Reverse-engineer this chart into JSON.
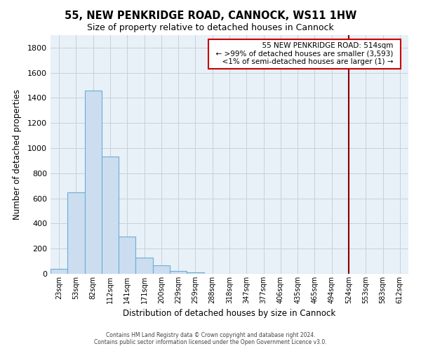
{
  "title": "55, NEW PENKRIDGE ROAD, CANNOCK, WS11 1HW",
  "subtitle": "Size of property relative to detached houses in Cannock",
  "xlabel": "Distribution of detached houses by size in Cannock",
  "ylabel": "Number of detached properties",
  "bar_labels": [
    "23sqm",
    "53sqm",
    "82sqm",
    "112sqm",
    "141sqm",
    "171sqm",
    "200sqm",
    "229sqm",
    "259sqm",
    "288sqm",
    "318sqm",
    "347sqm",
    "377sqm",
    "406sqm",
    "435sqm",
    "465sqm",
    "494sqm",
    "524sqm",
    "553sqm",
    "583sqm",
    "612sqm"
  ],
  "bar_values": [
    40,
    650,
    1460,
    935,
    295,
    130,
    65,
    22,
    10,
    0,
    0,
    0,
    0,
    0,
    0,
    0,
    0,
    0,
    0,
    0,
    0
  ],
  "bar_color": "#ccddf0",
  "bar_edge_color": "#6baed6",
  "plot_bg_color": "#e8f0f8",
  "ylim": [
    0,
    1900
  ],
  "yticks": [
    0,
    200,
    400,
    600,
    800,
    1000,
    1200,
    1400,
    1600,
    1800
  ],
  "vline_index": 17,
  "vline_color": "#8b0000",
  "annotation_title": "55 NEW PENKRIDGE ROAD: 514sqm",
  "annotation_line1": "← >99% of detached houses are smaller (3,593)",
  "annotation_line2": "<1% of semi-detached houses are larger (1) →",
  "annotation_box_color": "#ffffff",
  "annotation_box_edge_color": "#cc0000",
  "footer_line1": "Contains HM Land Registry data © Crown copyright and database right 2024.",
  "footer_line2": "Contains public sector information licensed under the Open Government Licence v3.0.",
  "background_color": "#ffffff",
  "grid_color": "#c8d0d8"
}
